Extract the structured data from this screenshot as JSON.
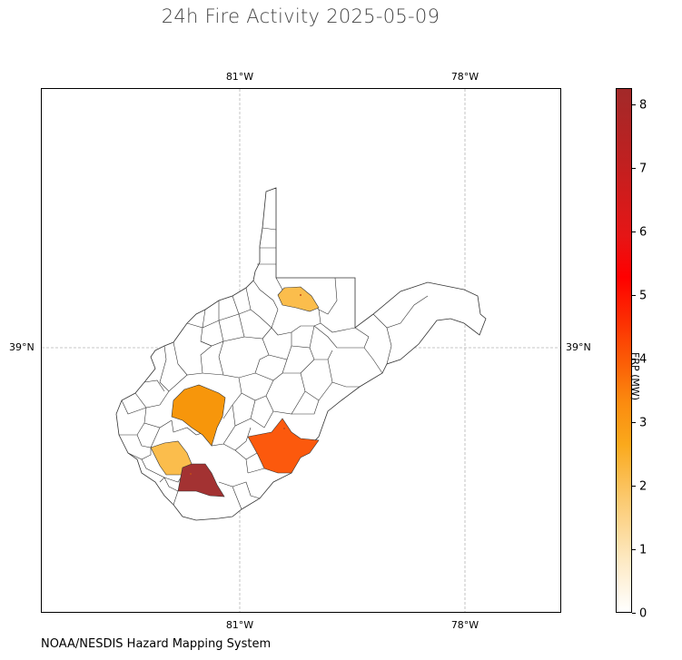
{
  "title": "24h Fire Activity 2025-05-09",
  "source": "NOAA/NESDIS Hazard Mapping System",
  "axes": {
    "top_ticks": [
      "81°W",
      "78°W"
    ],
    "bottom_ticks": [
      "81°W",
      "78°W"
    ],
    "left_tick": "39°N",
    "right_tick": "39°N"
  },
  "colorbar": {
    "label": "FRP (MW)",
    "ticks": [
      "0",
      "1",
      "2",
      "3",
      "4",
      "5",
      "6",
      "7",
      "8"
    ],
    "range": [
      0,
      8.25
    ],
    "colors": [
      "#ffffff",
      "#fbc86c",
      "#faa91c",
      "#fb5c06",
      "#ff0000",
      "#a22929"
    ]
  },
  "chart_data": {
    "type": "choropleth",
    "region": "West Virginia counties",
    "value_label": "FRP (MW)",
    "highlighted_counties": [
      {
        "value": 2.0,
        "color": "#fbbd4c"
      },
      {
        "value": 3.0,
        "color": "#f7960b"
      },
      {
        "value": 1.9,
        "color": "#fbbd4c"
      },
      {
        "value": 4.0,
        "color": "#fc590d"
      },
      {
        "value": 8.2,
        "color": "#a33232"
      }
    ],
    "grid": true
  }
}
